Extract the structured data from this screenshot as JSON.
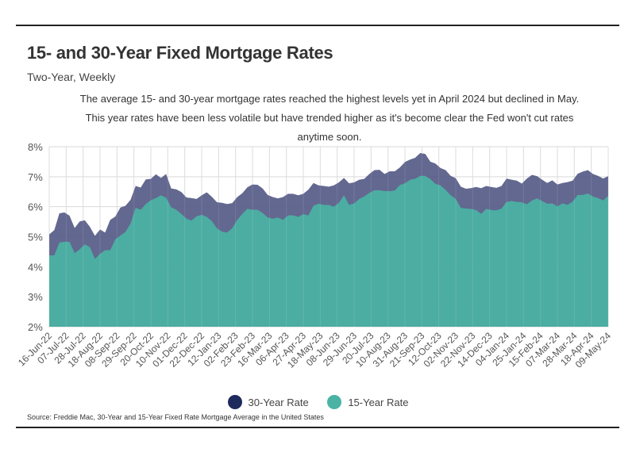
{
  "header": {
    "title": "15- and 30-Year Fixed Mortgage Rates",
    "subtitle": "Two-Year, Weekly",
    "description": "The average 15- and 30-year mortgage rates reached the highest levels yet in April 2024 but declined in May. This year rates have been less volatile but have trended higher as it's become clear the Fed won't cut rates anytime soon."
  },
  "legend": {
    "items": [
      {
        "label": "30-Year Rate",
        "color": "#1f2a5c"
      },
      {
        "label": "15-Year Rate",
        "color": "#4ab3a4"
      }
    ]
  },
  "source": "Source:  Freddie Mac, 30-Year  and 15-Year Fixed Rate Mortgage Average in the United States",
  "chart_data": {
    "type": "area",
    "title": "15- and 30-Year Fixed Mortgage Rates",
    "subtitle": "Two-Year, Weekly",
    "ylim": [
      2,
      8
    ],
    "yticks": [
      "2%",
      "3%",
      "4%",
      "5%",
      "6%",
      "7%",
      "8%"
    ],
    "grid": true,
    "legend_position": "bottom",
    "x_ticks": [
      "16-Jun-22",
      "07-Jul-22",
      "28-Jul-22",
      "18-Aug-22",
      "08-Sep-22",
      "29-Sep-22",
      "20-Oct-22",
      "10-Nov-22",
      "01-Dec-22",
      "22-Dec-22",
      "12-Jan-23",
      "02-Feb-23",
      "23-Feb-23",
      "16-Mar-23",
      "06-Apr-23",
      "27-Apr-23",
      "18-May-23",
      "08-Jun-23",
      "29-Jun-23",
      "20-Jul-23",
      "10-Aug-23",
      "31-Aug-23",
      "21-Sep-23",
      "12-Oct-23",
      "02-Nov-23",
      "22-Nov-23",
      "14-Dec-23",
      "04-Jan-24",
      "25-Jan-24",
      "15-Feb-24",
      "07-Mar-24",
      "28-Mar-24",
      "18-Apr-24",
      "09-May-24"
    ],
    "series": [
      {
        "name": "30-Year Rate",
        "color": "#565b87",
        "values": [
          5.08,
          5.22,
          5.78,
          5.81,
          5.7,
          5.29,
          5.51,
          5.55,
          5.33,
          5.03,
          5.24,
          5.14,
          5.56,
          5.67,
          5.97,
          6.03,
          6.23,
          6.69,
          6.64,
          6.91,
          6.93,
          7.08,
          6.96,
          7.09,
          6.61,
          6.58,
          6.49,
          6.31,
          6.29,
          6.26,
          6.38,
          6.48,
          6.33,
          6.15,
          6.13,
          6.09,
          6.12,
          6.32,
          6.45,
          6.65,
          6.74,
          6.73,
          6.61,
          6.39,
          6.32,
          6.28,
          6.32,
          6.43,
          6.43,
          6.38,
          6.43,
          6.57,
          6.79,
          6.71,
          6.69,
          6.67,
          6.71,
          6.81,
          6.96,
          6.78,
          6.81,
          6.9,
          6.93,
          7.09,
          7.22,
          7.23,
          7.09,
          7.18,
          7.18,
          7.31,
          7.49,
          7.57,
          7.63,
          7.79,
          7.76,
          7.5,
          7.44,
          7.29,
          7.22,
          7.03,
          6.95,
          6.67,
          6.6,
          6.62,
          6.66,
          6.62,
          6.69,
          6.66,
          6.63,
          6.69,
          6.94,
          6.9,
          6.87,
          6.77,
          6.94,
          7.06,
          7.02,
          6.9,
          6.79,
          6.88,
          6.74,
          6.79,
          6.82,
          6.87,
          7.1,
          7.17,
          7.22,
          7.09,
          7.03,
          6.94,
          7.02
        ]
      },
      {
        "name": "15-Year Rate",
        "color": "#4ab3a4",
        "values": [
          4.38,
          4.38,
          4.81,
          4.83,
          4.83,
          4.45,
          4.58,
          4.75,
          4.65,
          4.26,
          4.43,
          4.55,
          4.55,
          4.91,
          5.04,
          5.16,
          5.44,
          5.96,
          5.9,
          6.09,
          6.22,
          6.29,
          6.38,
          6.3,
          5.98,
          5.9,
          5.76,
          5.6,
          5.54,
          5.68,
          5.73,
          5.66,
          5.52,
          5.28,
          5.17,
          5.14,
          5.28,
          5.56,
          5.76,
          5.93,
          5.9,
          5.9,
          5.79,
          5.64,
          5.6,
          5.64,
          5.56,
          5.71,
          5.71,
          5.66,
          5.75,
          5.71,
          6.03,
          6.1,
          6.06,
          6.06,
          6.0,
          6.13,
          6.38,
          6.06,
          6.11,
          6.26,
          6.34,
          6.46,
          6.55,
          6.55,
          6.52,
          6.52,
          6.54,
          6.72,
          6.78,
          6.9,
          6.93,
          7.03,
          7.03,
          6.92,
          6.76,
          6.71,
          6.56,
          6.38,
          6.26,
          5.96,
          5.94,
          5.93,
          5.89,
          5.76,
          5.93,
          5.89,
          5.88,
          5.94,
          6.16,
          6.19,
          6.16,
          6.15,
          6.08,
          6.21,
          6.28,
          6.19,
          6.1,
          6.11,
          6.01,
          6.11,
          6.06,
          6.17,
          6.39,
          6.39,
          6.44,
          6.34,
          6.29,
          6.21,
          6.36
        ]
      }
    ]
  }
}
